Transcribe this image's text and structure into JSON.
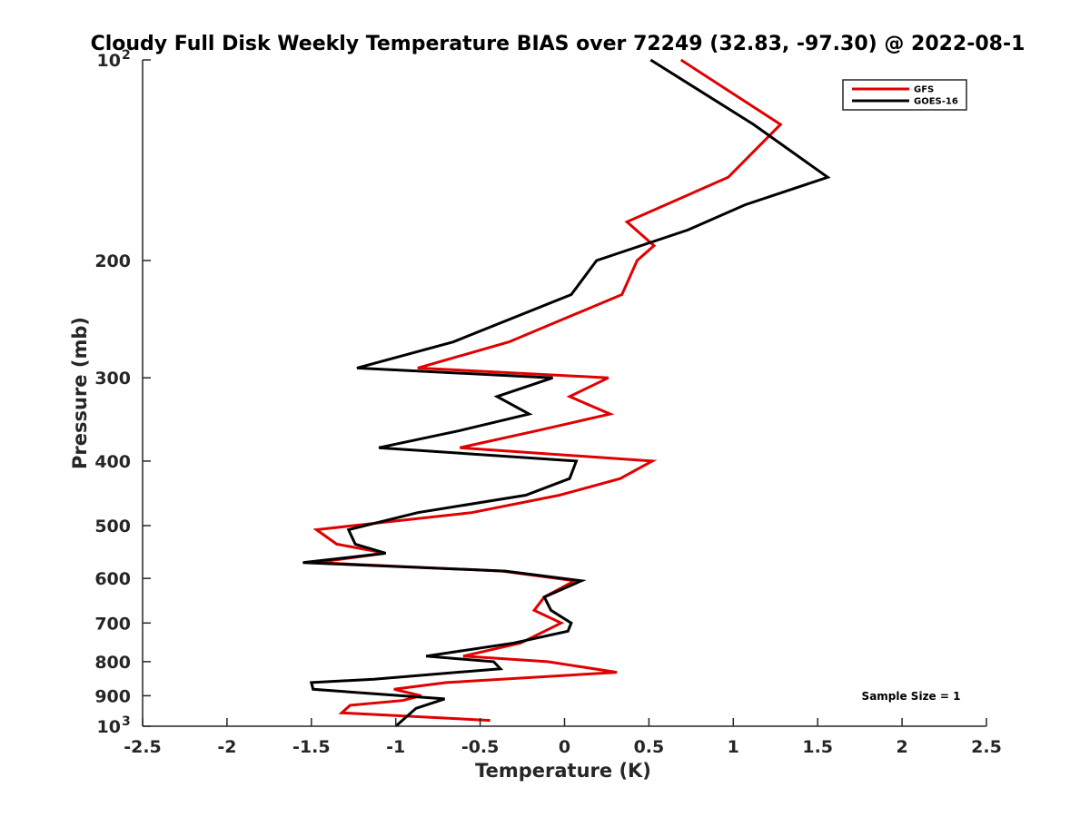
{
  "chart_data": {
    "type": "line",
    "title": "Cloudy Full Disk Weekly Temperature BIAS over 72249 (32.83, -97.30) @ 2022-08-1",
    "xlabel": "Temperature (K)",
    "ylabel": "Pressure (mb)",
    "xlim": [
      -2.5,
      2.5
    ],
    "ylim": [
      100,
      1000
    ],
    "y_scale": "log",
    "y_reversed": true,
    "x_ticks": [
      "-2.5",
      "-2",
      "-1.5",
      "-1",
      "-0.5",
      "0",
      "0.5",
      "1",
      "1.5",
      "2",
      "2.5"
    ],
    "x_tick_values": [
      -2.5,
      -2,
      -1.5,
      -1,
      -0.5,
      0,
      0.5,
      1,
      1.5,
      2,
      2.5
    ],
    "y_ticks": [
      {
        "value": 100,
        "base": "10",
        "exp": "2"
      },
      {
        "value": 200,
        "label": "200"
      },
      {
        "value": 300,
        "label": "300"
      },
      {
        "value": 400,
        "label": "400"
      },
      {
        "value": 500,
        "label": "500"
      },
      {
        "value": 600,
        "label": "600"
      },
      {
        "value": 700,
        "label": "700"
      },
      {
        "value": 800,
        "label": "800"
      },
      {
        "value": 900,
        "label": "900"
      },
      {
        "value": 1000,
        "base": "10",
        "exp": "3"
      }
    ],
    "grid": false,
    "legend_position": "top-right",
    "annotation": "Sample Size = 1",
    "series": [
      {
        "name": "GFS",
        "color": "#e00000",
        "points": [
          [
            0.69,
            100
          ],
          [
            1.28,
            125
          ],
          [
            0.97,
            150
          ],
          [
            0.37,
            175
          ],
          [
            0.53,
            190
          ],
          [
            0.43,
            200
          ],
          [
            0.34,
            225
          ],
          [
            -0.33,
            265
          ],
          [
            -0.87,
            290
          ],
          [
            0.26,
            300
          ],
          [
            0.03,
            320
          ],
          [
            0.27,
            340
          ],
          [
            -0.16,
            360
          ],
          [
            -0.62,
            382
          ],
          [
            0.52,
            400
          ],
          [
            0.33,
            425
          ],
          [
            -0.03,
            450
          ],
          [
            -0.55,
            478
          ],
          [
            -1.47,
            507
          ],
          [
            -1.35,
            533
          ],
          [
            -1.06,
            550
          ],
          [
            -1.47,
            568
          ],
          [
            -0.37,
            585
          ],
          [
            0.06,
            605
          ],
          [
            -0.12,
            640
          ],
          [
            -0.18,
            670
          ],
          [
            -0.02,
            700
          ],
          [
            -0.26,
            750
          ],
          [
            -0.6,
            785
          ],
          [
            -0.1,
            800
          ],
          [
            0.31,
            830
          ],
          [
            -0.7,
            860
          ],
          [
            -1.01,
            880
          ],
          [
            -0.85,
            900
          ],
          [
            -0.96,
            915
          ],
          [
            -1.27,
            930
          ],
          [
            -1.32,
            955
          ],
          [
            -0.44,
            980
          ]
        ]
      },
      {
        "name": "GOES-16",
        "color": "#000000",
        "points": [
          [
            0.51,
            100
          ],
          [
            1.12,
            125
          ],
          [
            1.56,
            150
          ],
          [
            1.07,
            165
          ],
          [
            0.73,
            180
          ],
          [
            0.19,
            200
          ],
          [
            0.04,
            225
          ],
          [
            -0.66,
            265
          ],
          [
            -1.23,
            290
          ],
          [
            -0.07,
            300
          ],
          [
            -0.4,
            320
          ],
          [
            -0.21,
            340
          ],
          [
            -0.62,
            360
          ],
          [
            -1.1,
            382
          ],
          [
            0.07,
            400
          ],
          [
            0.03,
            425
          ],
          [
            -0.23,
            450
          ],
          [
            -0.87,
            478
          ],
          [
            -1.28,
            507
          ],
          [
            -1.24,
            533
          ],
          [
            -1.06,
            550
          ],
          [
            -1.55,
            568
          ],
          [
            -0.35,
            585
          ],
          [
            0.1,
            605
          ],
          [
            -0.12,
            640
          ],
          [
            -0.08,
            670
          ],
          [
            0.04,
            700
          ],
          [
            0.02,
            720
          ],
          [
            -0.3,
            750
          ],
          [
            -0.82,
            785
          ],
          [
            -0.42,
            800
          ],
          [
            -0.38,
            820
          ],
          [
            -1.13,
            850
          ],
          [
            -1.5,
            860
          ],
          [
            -1.49,
            880
          ],
          [
            -0.71,
            910
          ],
          [
            -0.88,
            940
          ],
          [
            -1.0,
            1000
          ]
        ]
      }
    ]
  }
}
